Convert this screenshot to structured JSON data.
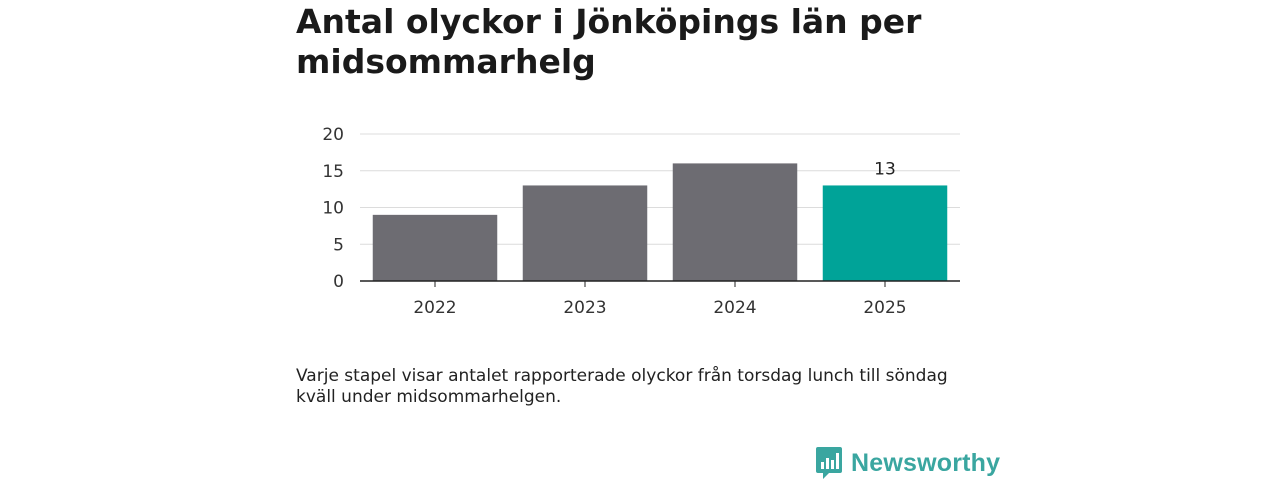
{
  "title": "Antal olyckor i Jönköpings län per midsommarhelg",
  "caption": "Varje stapel visar antalet rapporterade olyckor från torsdag lunch till söndag kväll under midsommarhelgen.",
  "brand": {
    "name": "Newsworthy",
    "icon": "newsworthy-logo-icon",
    "color": "#3aa6a0"
  },
  "chart_data": {
    "type": "bar",
    "categories": [
      "2022",
      "2023",
      "2024",
      "2025"
    ],
    "values": [
      9,
      13,
      16,
      13
    ],
    "colors": [
      "#6d6c72",
      "#6d6c72",
      "#6d6c72",
      "#00a398"
    ],
    "data_labels": [
      null,
      null,
      null,
      "13"
    ],
    "ylim": [
      0,
      20
    ],
    "yticks": [
      0,
      5,
      10,
      15,
      20
    ],
    "grid": true,
    "title": "Antal olyckor i Jönköpings län per midsommarhelg",
    "xlabel": "",
    "ylabel": ""
  }
}
